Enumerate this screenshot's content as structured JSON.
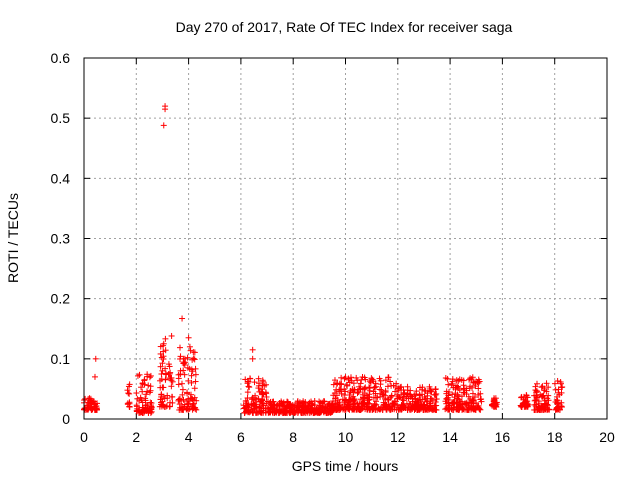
{
  "chart_data": {
    "type": "scatter",
    "title": "Day 270 of 2017, Rate Of TEC Index for receiver saga",
    "xlabel": "GPS time / hours",
    "ylabel": "ROTI / TECUs",
    "xlim": [
      0,
      20
    ],
    "ylim": [
      0,
      0.6
    ],
    "xticks": [
      "0",
      "2",
      "4",
      "6",
      "8",
      "10",
      "12",
      "14",
      "16",
      "18",
      "20"
    ],
    "yticks": [
      "0",
      "0.1",
      "0.2",
      "0.3",
      "0.4",
      "0.5",
      "0.6"
    ],
    "grid": true,
    "marker": "+",
    "color": "#ff0000",
    "clusters": [
      {
        "x": [
          0.0,
          0.5
        ],
        "y": [
          0.015,
          0.035
        ]
      },
      {
        "x": [
          1.65,
          1.75
        ],
        "y": [
          0.02,
          0.06
        ]
      },
      {
        "x": [
          2.0,
          2.6
        ],
        "y": [
          0.01,
          0.075
        ]
      },
      {
        "x": [
          2.9,
          3.4
        ],
        "y": [
          0.02,
          0.14
        ]
      },
      {
        "x": [
          3.6,
          4.3
        ],
        "y": [
          0.015,
          0.12
        ]
      },
      {
        "x": [
          6.1,
          7.0
        ],
        "y": [
          0.01,
          0.07
        ]
      },
      {
        "x": [
          7.0,
          9.5
        ],
        "y": [
          0.01,
          0.03
        ]
      },
      {
        "x": [
          9.5,
          12.0
        ],
        "y": [
          0.015,
          0.07
        ]
      },
      {
        "x": [
          12.0,
          13.5
        ],
        "y": [
          0.015,
          0.055
        ]
      },
      {
        "x": [
          13.8,
          15.2
        ],
        "y": [
          0.015,
          0.07
        ]
      },
      {
        "x": [
          15.6,
          15.8
        ],
        "y": [
          0.02,
          0.035
        ]
      },
      {
        "x": [
          16.7,
          17.0
        ],
        "y": [
          0.02,
          0.045
        ]
      },
      {
        "x": [
          17.2,
          17.8
        ],
        "y": [
          0.015,
          0.06
        ]
      },
      {
        "x": [
          18.0,
          18.3
        ],
        "y": [
          0.015,
          0.065
        ]
      }
    ],
    "notable_points": [
      {
        "x": 3.1,
        "y": 0.52
      },
      {
        "x": 3.1,
        "y": 0.515
      },
      {
        "x": 3.05,
        "y": 0.488
      },
      {
        "x": 3.75,
        "y": 0.167
      },
      {
        "x": 3.35,
        "y": 0.138
      },
      {
        "x": 4.0,
        "y": 0.135
      },
      {
        "x": 4.05,
        "y": 0.12
      },
      {
        "x": 0.45,
        "y": 0.1
      },
      {
        "x": 0.42,
        "y": 0.07
      },
      {
        "x": 6.45,
        "y": 0.115
      },
      {
        "x": 6.45,
        "y": 0.1
      },
      {
        "x": 3.8,
        "y": 0.1
      },
      {
        "x": 3.05,
        "y": 0.125
      }
    ]
  }
}
